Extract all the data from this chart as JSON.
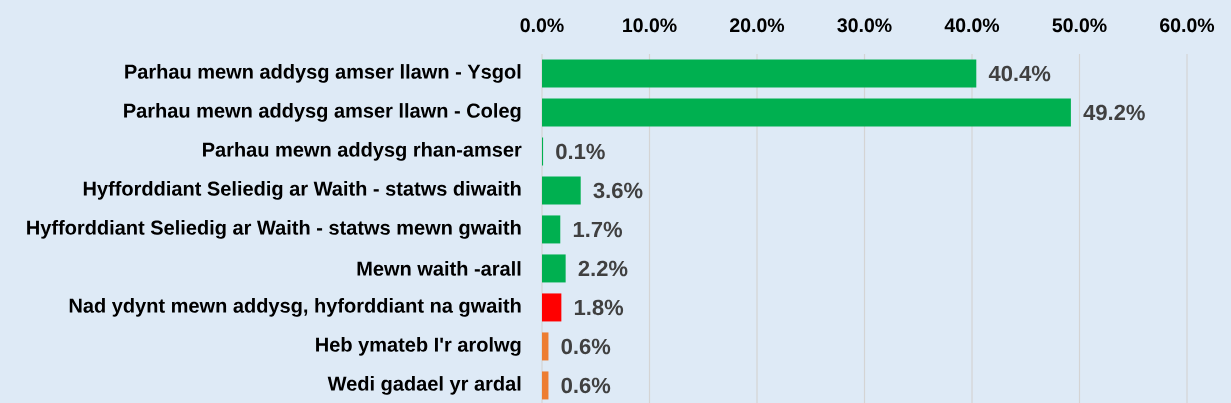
{
  "chart_data": {
    "type": "bar",
    "orientation": "horizontal",
    "categories": [
      "Parhau mewn addysg amser llawn - Ysgol",
      "Parhau mewn addysg amser llawn - Coleg",
      "Parhau mewn addysg rhan-amser",
      "Hyfforddiant Seliedig ar Waith - statws diwaith",
      "Hyfforddiant Seliedig ar Waith - statws mewn gwaith",
      "Mewn waith -arall",
      "Nad ydynt mewn addysg, hyforddiant na gwaith",
      "Heb ymateb I'r arolwg",
      "Wedi gadael yr ardal"
    ],
    "values": [
      40.4,
      49.2,
      0.1,
      3.6,
      1.7,
      2.2,
      1.8,
      0.6,
      0.6
    ],
    "colors": [
      "#00b050",
      "#00b050",
      "#00b050",
      "#00b050",
      "#00b050",
      "#00b050",
      "#ff0000",
      "#ed7d31",
      "#ed7d31"
    ],
    "value_labels": [
      "40.4%",
      "49.2%",
      "0.1%",
      "3.6%",
      "1.7%",
      "2.2%",
      "1.8%",
      "0.6%",
      "0.6%"
    ],
    "xlim": [
      0,
      60
    ],
    "xticks": [
      {
        "value": 0,
        "label": "0.0%"
      },
      {
        "value": 10,
        "label": "10.0%"
      },
      {
        "value": 20,
        "label": "20.0%"
      },
      {
        "value": 30,
        "label": "30.0%"
      },
      {
        "value": 40,
        "label": "40.0%"
      },
      {
        "value": 50,
        "label": "50.0%"
      },
      {
        "value": 60,
        "label": "60.0%"
      }
    ],
    "grid": "x"
  }
}
